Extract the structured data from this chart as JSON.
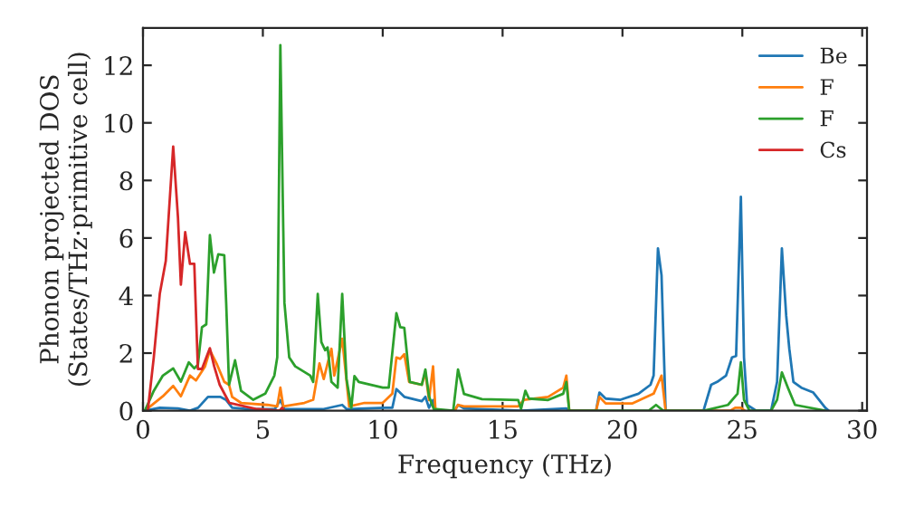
{
  "chart_data": {
    "type": "line",
    "xlabel": "Frequency (THz)",
    "ylabel": "Phonon projected DOS\n(States/THz·primitive cell)",
    "xlim": [
      0,
      30.2
    ],
    "ylim": [
      0,
      13.3
    ],
    "xticks": [
      0,
      5,
      10,
      15,
      20,
      25,
      30
    ],
    "yticks": [
      0,
      2,
      4,
      6,
      8,
      10,
      12
    ],
    "grid": false,
    "legend": "top right",
    "marker": "none",
    "line_style": "solid",
    "series": [
      {
        "name": "Be",
        "color": "#1f77b4",
        "x": [
          0.08,
          0.7,
          1.46,
          1.96,
          2.3,
          2.71,
          3.22,
          3.47,
          3.72,
          4.5,
          5.5,
          5.73,
          5.9,
          7.5,
          8.31,
          8.5,
          10.1,
          10.4,
          10.57,
          10.9,
          11.63,
          11.78,
          11.93,
          12.1,
          12.2,
          13.0,
          13.14,
          13.39,
          15.77,
          17.66,
          17.78,
          18.9,
          19.04,
          19.3,
          19.92,
          20.67,
          21.17,
          21.3,
          21.48,
          21.63,
          21.8,
          23.38,
          23.7,
          23.95,
          24.32,
          24.57,
          24.74,
          24.94,
          25.07,
          25.2,
          25.58,
          26.2,
          26.45,
          26.65,
          26.83,
          26.96,
          27.13,
          27.46,
          27.96,
          28.2,
          28.46,
          28.6
        ],
        "values": [
          0,
          0.1,
          0.08,
          0,
          0.1,
          0.48,
          0.48,
          0.37,
          0.1,
          0.05,
          0.05,
          0.37,
          0.05,
          0.05,
          0.2,
          0.05,
          0.1,
          0.1,
          0.75,
          0.48,
          0.33,
          0.48,
          0.1,
          0.37,
          0,
          0,
          0.2,
          0.08,
          0,
          0.08,
          0,
          0,
          0.63,
          0.42,
          0.38,
          0.59,
          0.9,
          1.22,
          5.64,
          4.7,
          0,
          0,
          0.9,
          1.0,
          1.22,
          1.85,
          1.9,
          7.43,
          1.85,
          0.2,
          0,
          0,
          1.0,
          5.64,
          3.3,
          2.15,
          1.0,
          0.8,
          0.63,
          0.38,
          0.1,
          0
        ]
      },
      {
        "name": "F",
        "color": "#ff7f0e",
        "x": [
          0.08,
          0.83,
          1.26,
          1.58,
          1.96,
          2.21,
          2.59,
          2.79,
          3.09,
          3.39,
          3.59,
          3.72,
          4.09,
          5.2,
          5.6,
          5.73,
          5.85,
          6.73,
          7.1,
          7.36,
          7.54,
          7.7,
          7.86,
          7.98,
          8.31,
          8.6,
          9.24,
          10.0,
          10.4,
          10.57,
          10.73,
          10.9,
          11.1,
          11.63,
          11.78,
          11.93,
          12.1,
          12.2,
          13.0,
          13.14,
          13.39,
          15.65,
          15.9,
          16.9,
          17.53,
          17.66,
          17.78,
          18.9,
          19.04,
          19.3,
          20.4,
          21.3,
          21.63,
          21.8,
          24.5,
          24.7,
          24.94,
          25.1
        ],
        "values": [
          0,
          0.5,
          0.86,
          0.5,
          1.22,
          1.05,
          1.54,
          2.1,
          1.6,
          1.0,
          0.9,
          0.48,
          0.27,
          0.2,
          0.15,
          0.8,
          0.15,
          0.27,
          0.38,
          1.64,
          1.1,
          1.64,
          2.15,
          1.22,
          2.5,
          0.15,
          0.27,
          0.27,
          0.59,
          1.85,
          1.8,
          1.96,
          1.0,
          0.9,
          1.33,
          0.37,
          1.54,
          0,
          0,
          0.2,
          0.15,
          0.15,
          0.38,
          0.48,
          0.8,
          1.22,
          0,
          0,
          0.48,
          0.25,
          0.25,
          0.59,
          1.22,
          0,
          0,
          0.1,
          0.1,
          0
        ]
      },
      {
        "name": "F",
        "color": "#2ca02c",
        "x": [
          0.08,
          0.45,
          0.83,
          1.26,
          1.58,
          1.91,
          2.14,
          2.29,
          2.46,
          2.64,
          2.79,
          2.96,
          3.14,
          3.39,
          3.47,
          3.59,
          3.84,
          4.09,
          4.6,
          5.1,
          5.48,
          5.6,
          5.73,
          5.9,
          6.1,
          6.35,
          6.98,
          7.1,
          7.29,
          7.44,
          7.6,
          7.7,
          7.86,
          8.12,
          8.31,
          8.49,
          8.69,
          8.82,
          9.0,
          10.0,
          10.25,
          10.57,
          10.73,
          10.9,
          11.13,
          11.63,
          11.78,
          11.93,
          12.13,
          12.94,
          13.14,
          13.39,
          14.14,
          15.65,
          15.77,
          15.95,
          16.1,
          16.9,
          17.53,
          17.66,
          17.78,
          21.1,
          21.4,
          21.7,
          23.4,
          24.4,
          24.8,
          24.94,
          25.07,
          25.3,
          26.2,
          26.45,
          26.65,
          26.9,
          27.2,
          28.46
        ],
        "values": [
          0,
          0.69,
          1.22,
          1.47,
          1.01,
          1.68,
          1.47,
          1.6,
          2.9,
          3.0,
          6.1,
          4.8,
          5.43,
          5.4,
          3.75,
          0.9,
          1.75,
          0.69,
          0.38,
          0.59,
          1.22,
          1.85,
          12.7,
          3.75,
          1.85,
          1.54,
          1.22,
          1.0,
          4.06,
          2.38,
          2.1,
          2.2,
          1.0,
          0.8,
          4.06,
          1.1,
          0.1,
          1.2,
          1.0,
          0.8,
          0.8,
          3.39,
          2.9,
          2.88,
          1.0,
          0.9,
          1.43,
          0.5,
          0.06,
          0,
          1.43,
          0.58,
          0.4,
          0.37,
          0.06,
          0.69,
          0.42,
          0.37,
          0.59,
          1.0,
          0,
          0,
          0.2,
          0,
          0,
          0.2,
          0.59,
          1.68,
          0.38,
          0,
          0,
          0.38,
          1.33,
          0.8,
          0.2,
          0
        ]
      },
      {
        "name": "Cs",
        "color": "#d62728",
        "x": [
          0.2,
          0.45,
          0.7,
          0.95,
          1.26,
          1.46,
          1.58,
          1.76,
          1.96,
          2.14,
          2.29,
          2.46,
          2.79,
          2.97,
          3.2,
          3.6,
          4.7,
          5.7,
          5.8,
          5.9
        ],
        "values": [
          0,
          1.85,
          4.06,
          5.2,
          9.18,
          6.7,
          4.38,
          6.2,
          5.1,
          5.1,
          1.45,
          1.45,
          2.17,
          1.54,
          0.9,
          0.27,
          0.06,
          0.0,
          0.1,
          0.0
        ]
      }
    ]
  }
}
